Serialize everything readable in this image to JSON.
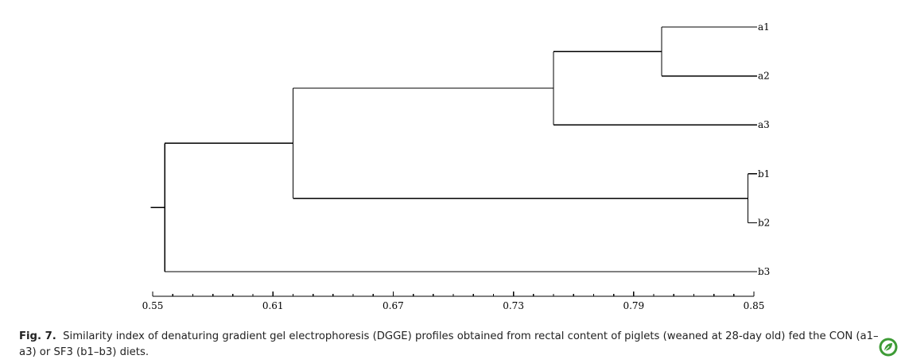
{
  "chart_data": {
    "type": "dendrogram",
    "x_axis": {
      "range": [
        0.55,
        0.85
      ],
      "ticks": [
        "0.55",
        "0.61",
        "0.67",
        "0.73",
        "0.79",
        "0.85"
      ],
      "tick_values": [
        0.55,
        0.61,
        0.67,
        0.73,
        0.79,
        0.85
      ]
    },
    "leaves": [
      "a1",
      "a2",
      "a3",
      "b1",
      "b2",
      "b3"
    ],
    "merges": [
      {
        "members": [
          "a1",
          "a2"
        ],
        "similarity": 0.804
      },
      {
        "members": [
          "b1",
          "b2"
        ],
        "similarity": 0.847
      },
      {
        "members": [
          "a1",
          "a2",
          "a3"
        ],
        "similarity": 0.75
      },
      {
        "members": [
          "a1",
          "a2",
          "a3",
          "b1",
          "b2"
        ],
        "similarity": 0.62
      },
      {
        "members": [
          "a1",
          "a2",
          "a3",
          "b1",
          "b2",
          "b3"
        ],
        "similarity": 0.556
      }
    ],
    "root_stub": 0.549
  },
  "caption": {
    "label": "Fig. 7.",
    "text": "Similarity index of denaturing gradient gel electrophoresis (DGGE) profiles obtained from rectal content of piglets (weaned at 28-day old) fed the CON (a1–a3) or SF3 (b1–b3) diets."
  },
  "logo_icon": "elsevier-leaf-icon",
  "colors": {
    "lines": "#000000",
    "logo": "#3d9b35"
  }
}
